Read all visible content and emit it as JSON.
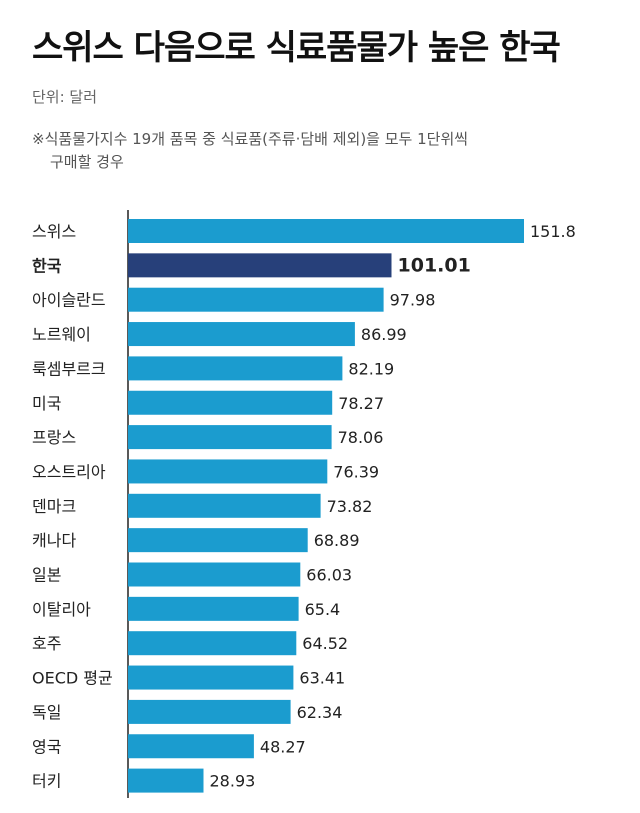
{
  "title": "스위스 다음으로 식료품물가 높은 한국",
  "unit_label": "단위: 달러",
  "note_line1": "※식품물가지수 19개 품목 중 식료품(주류·담배 제외)을 모두 1단위씩",
  "note_line2": "구매할 경우",
  "colors": {
    "bar": "#1b9ccf",
    "highlight": "#27407a",
    "axis": "#222222",
    "text": "#222222"
  },
  "chart_data": {
    "type": "bar",
    "orientation": "horizontal",
    "highlight": "한국",
    "categories": [
      "스위스",
      "한국",
      "아이슬란드",
      "노르웨이",
      "룩셈부르크",
      "미국",
      "프랑스",
      "오스트리아",
      "덴마크",
      "캐나다",
      "일본",
      "이탈리아",
      "호주",
      "OECD 평균",
      "독일",
      "영국",
      "터키"
    ],
    "values": [
      151.8,
      101.01,
      97.98,
      86.99,
      82.19,
      78.27,
      78.06,
      76.39,
      73.82,
      68.89,
      66.03,
      65.4,
      64.52,
      63.41,
      62.34,
      48.27,
      28.93
    ],
    "value_labels": [
      "151.8",
      "101.01",
      "97.98",
      "86.99",
      "82.19",
      "78.27",
      "78.06",
      "76.39",
      "73.82",
      "68.89",
      "66.03",
      "65.4",
      "64.52",
      "63.41",
      "62.34",
      "48.27",
      "28.93"
    ],
    "xlim": [
      0,
      151.8
    ],
    "grid": false
  }
}
